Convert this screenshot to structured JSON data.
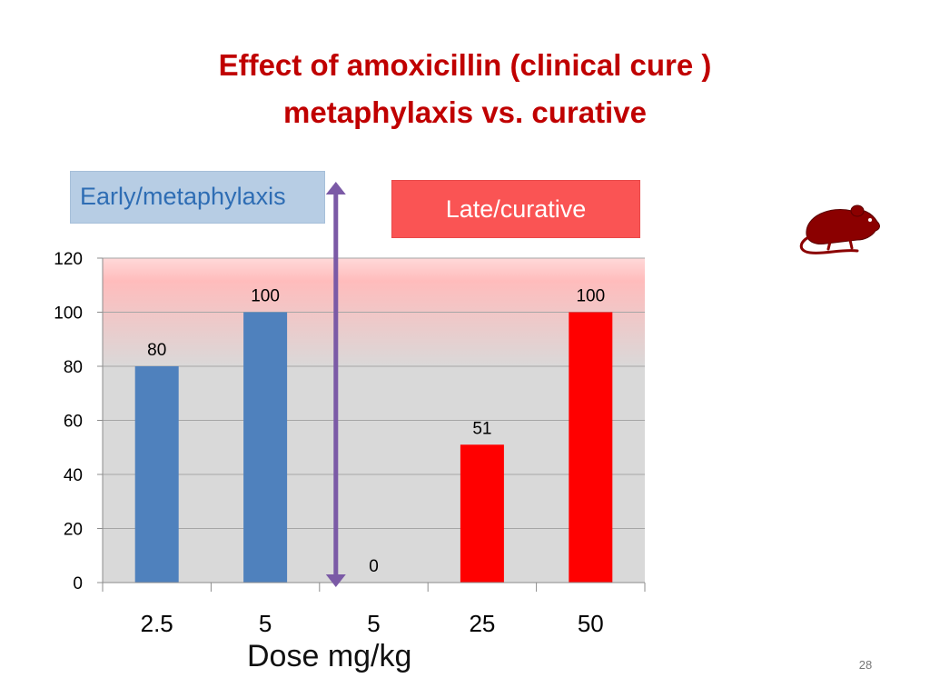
{
  "slide": {
    "title_line1": "Effect of amoxicillin (clinical cure )",
    "title_line2": "metaphylaxis vs. curative",
    "label_early": "Early/metaphylaxis",
    "label_late": "Late/curative",
    "icon": "rat-icon",
    "page_number": "28"
  },
  "chart_data": {
    "type": "bar",
    "categories": [
      "2.5",
      "5",
      "5",
      "25",
      "50"
    ],
    "values": [
      80,
      100,
      0,
      51,
      100
    ],
    "data_labels": [
      "80",
      "100",
      "0",
      "51",
      "100"
    ],
    "bar_colors": [
      "#4f81bd",
      "#4f81bd",
      "#4f81bd",
      "#ff0000",
      "#ff0000"
    ],
    "xlabel": "Dose mg/kg",
    "ylabel": "",
    "ylim": [
      0,
      120
    ],
    "yticks": [
      0,
      20,
      40,
      60,
      80,
      100,
      120
    ],
    "grid": true,
    "divider": "double-headed arrow between category 2 and category 3",
    "colors": {
      "early": "#4f81bd",
      "late": "#ff0000",
      "divider": "#7b5aa6",
      "title": "#c00000"
    }
  }
}
